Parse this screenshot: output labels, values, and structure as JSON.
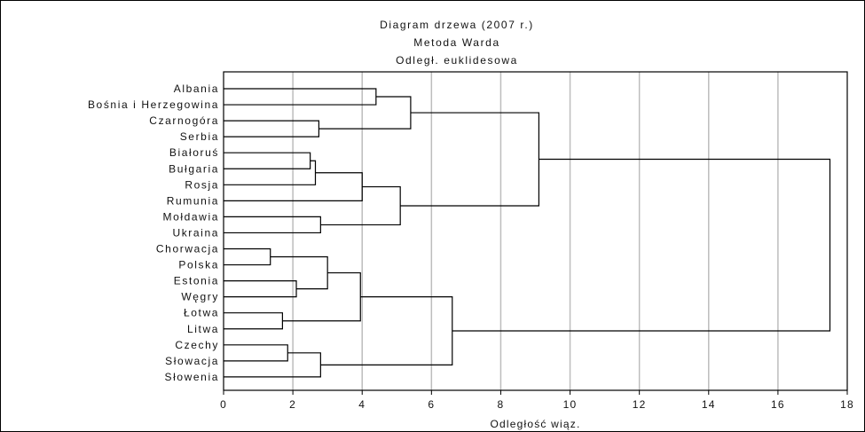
{
  "chart_data": {
    "type": "dendrogram",
    "title_lines": [
      "Diagram drzewa (2007 r.)",
      "Metoda Warda",
      "Odległ. euklidesowa"
    ],
    "xlabel": "Odległość wiąz.",
    "xlim": [
      0,
      18
    ],
    "xticks": [
      0,
      2,
      4,
      6,
      8,
      10,
      12,
      14,
      16,
      18
    ],
    "grid": "vertical",
    "leaves": [
      "Albania",
      "Bośnia i Herzegowina",
      "Czarnogóra",
      "Serbia",
      "Białoruś",
      "Bułgaria",
      "Rosja",
      "Rumunia",
      "Mołdawia",
      "Ukraina",
      "Chorwacja",
      "Polska",
      "Estonia",
      "Węgry",
      "Łotwa",
      "Litwa",
      "Czechy",
      "Słowacja",
      "Słowenia"
    ],
    "merges": [
      {
        "a": "Albania",
        "b": "Bośnia i Herzegowina",
        "height": 4.4
      },
      {
        "a": "Czarnogóra",
        "b": "Serbia",
        "height": 2.75
      },
      {
        "a": "m0",
        "b": "m1",
        "height": 5.4
      },
      {
        "a": "Białoruś",
        "b": "Bułgaria",
        "height": 2.5
      },
      {
        "a": "m3",
        "b": "Rosja",
        "height": 2.65
      },
      {
        "a": "m4",
        "b": "Rumunia",
        "height": 4.0
      },
      {
        "a": "Mołdawia",
        "b": "Ukraina",
        "height": 2.8
      },
      {
        "a": "m5",
        "b": "m6",
        "height": 5.1
      },
      {
        "a": "m2",
        "b": "m7",
        "height": 9.1
      },
      {
        "a": "Chorwacja",
        "b": "Polska",
        "height": 1.35
      },
      {
        "a": "Estonia",
        "b": "Węgry",
        "height": 2.1
      },
      {
        "a": "m9",
        "b": "m10",
        "height": 3.0
      },
      {
        "a": "Łotwa",
        "b": "Litwa",
        "height": 1.7
      },
      {
        "a": "m11",
        "b": "m12",
        "height": 3.95
      },
      {
        "a": "Czechy",
        "b": "Słowacja",
        "height": 1.85
      },
      {
        "a": "m14",
        "b": "Słowenia",
        "height": 2.8
      },
      {
        "a": "m13",
        "b": "m15",
        "height": 6.6
      },
      {
        "a": "m8",
        "b": "m16",
        "height": 17.5
      }
    ]
  }
}
